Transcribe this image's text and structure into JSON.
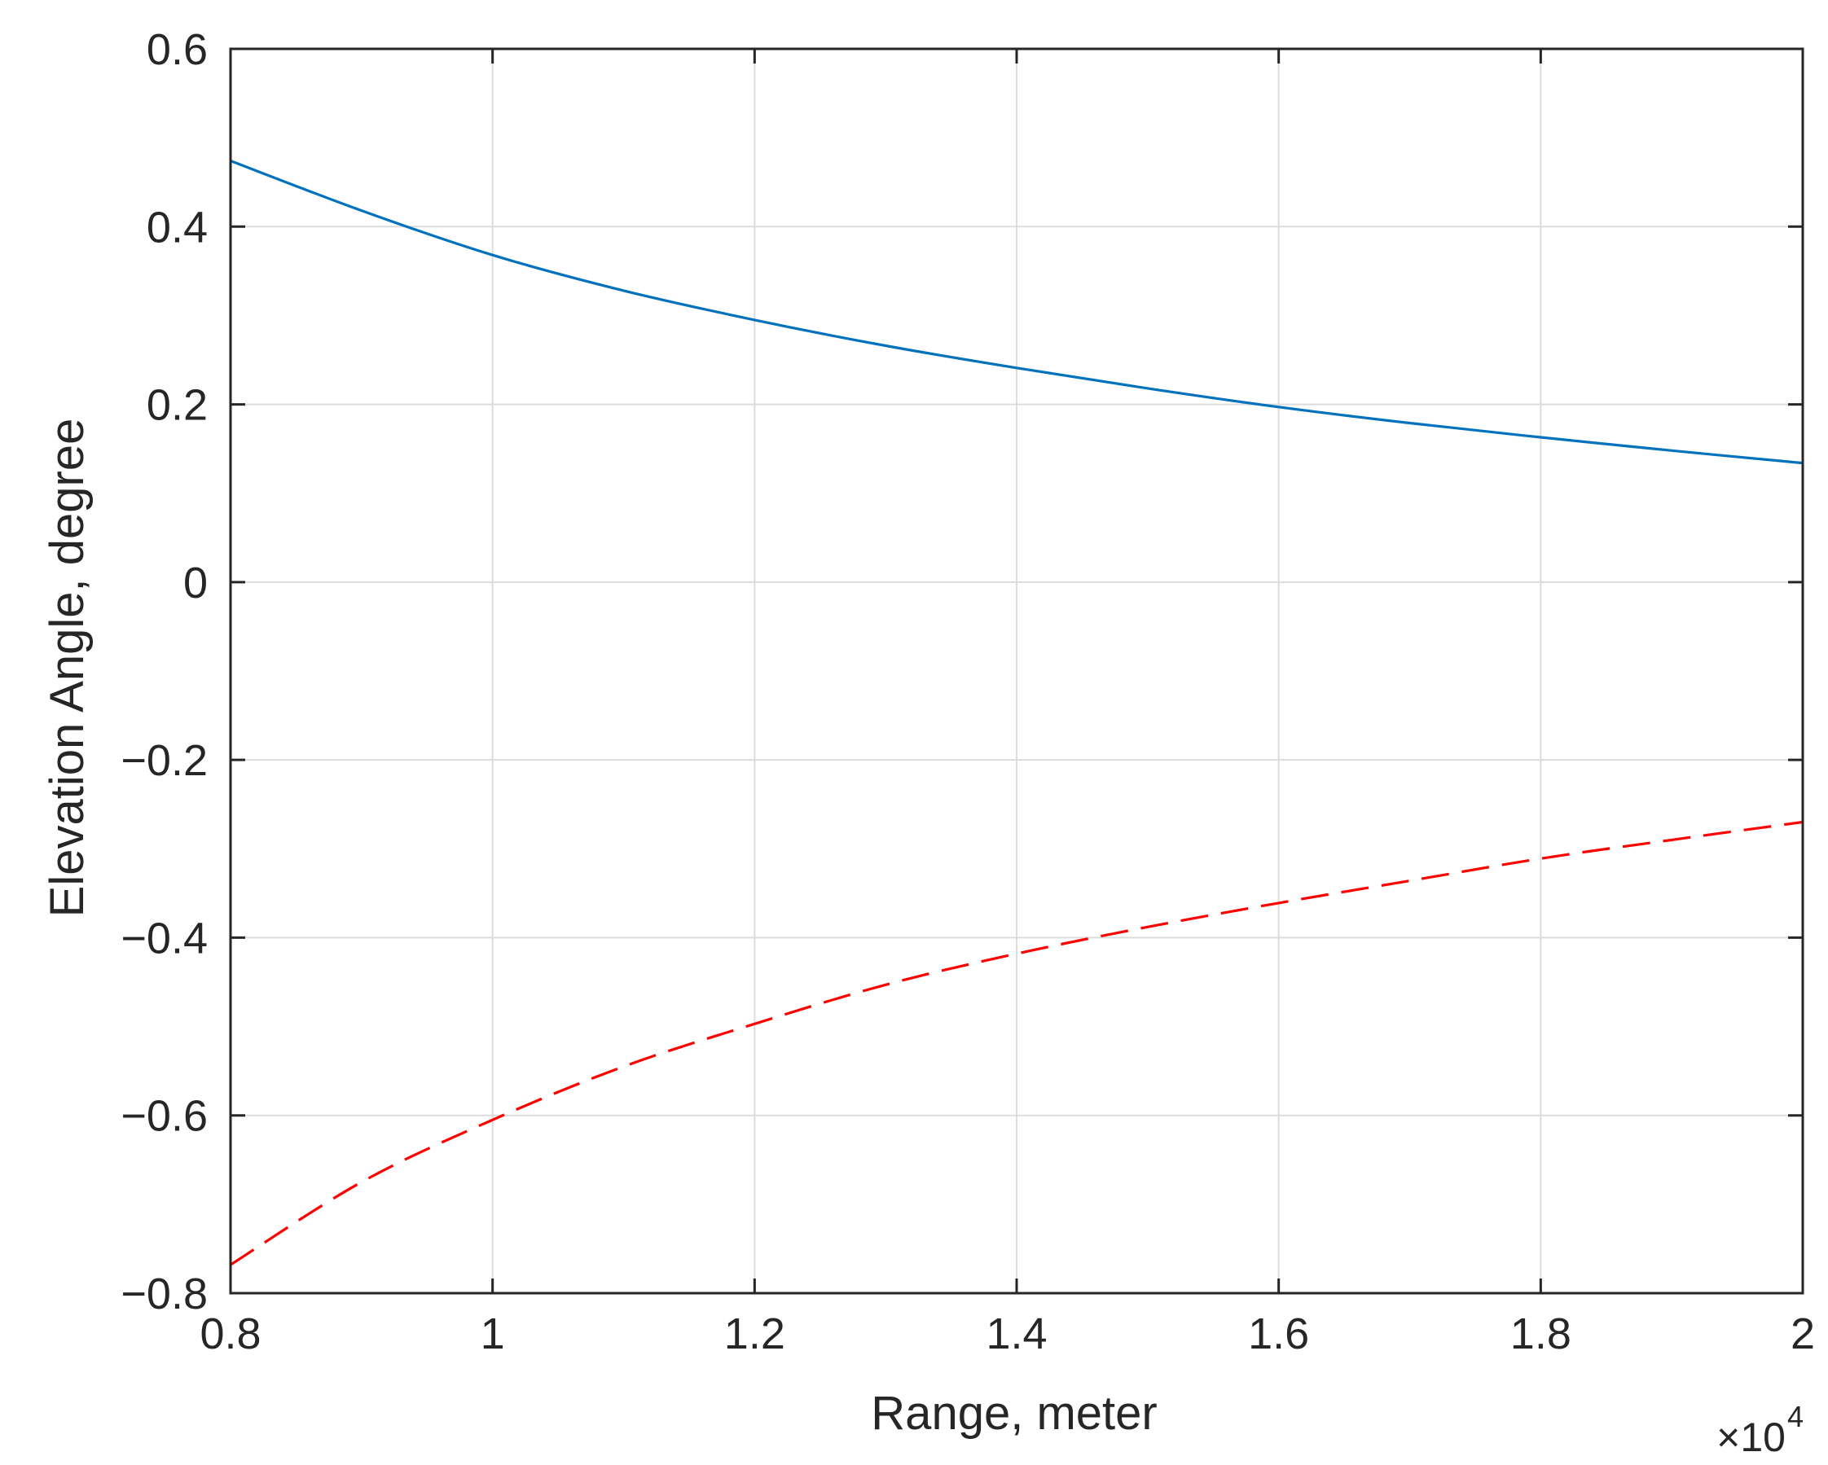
{
  "chart_data": {
    "type": "line",
    "title": "",
    "xlabel": "Range, meter",
    "ylabel": "Elevation Angle, degree",
    "x_multiplier": {
      "base": "×10",
      "exponent": "4"
    },
    "xlim": [
      0.8,
      2
    ],
    "ylim": [
      -0.8,
      0.6
    ],
    "x_ticks": [
      0.8,
      1,
      1.2,
      1.4,
      1.6,
      1.8,
      2
    ],
    "x_tick_labels": [
      "0.8",
      "1",
      "1.2",
      "1.4",
      "1.6",
      "1.8",
      "2"
    ],
    "y_ticks": [
      0.6,
      0.4,
      0.2,
      0,
      -0.2,
      -0.4,
      -0.6,
      -0.8
    ],
    "y_tick_labels": [
      "0.6",
      "0.4",
      "0.2",
      "0",
      "−0.2",
      "−0.4",
      "−0.6",
      "−0.8"
    ],
    "grid": true,
    "legend": "none",
    "x": [
      0.8,
      0.9,
      1.0,
      1.1,
      1.2,
      1.3,
      1.4,
      1.5,
      1.6,
      1.7,
      1.8,
      1.9,
      2.0
    ],
    "series": [
      {
        "style": "solid",
        "color": "#0072BD",
        "values": [
          0.474,
          0.418,
          0.368,
          0.328,
          0.295,
          0.266,
          0.241,
          0.218,
          0.197,
          0.179,
          0.163,
          0.148,
          0.134
        ]
      },
      {
        "style": "dashed",
        "color": "#FF0000",
        "values": [
          -0.768,
          -0.675,
          -0.605,
          -0.545,
          -0.497,
          -0.453,
          -0.418,
          -0.388,
          -0.361,
          -0.336,
          -0.311,
          -0.29,
          -0.27
        ]
      }
    ]
  }
}
